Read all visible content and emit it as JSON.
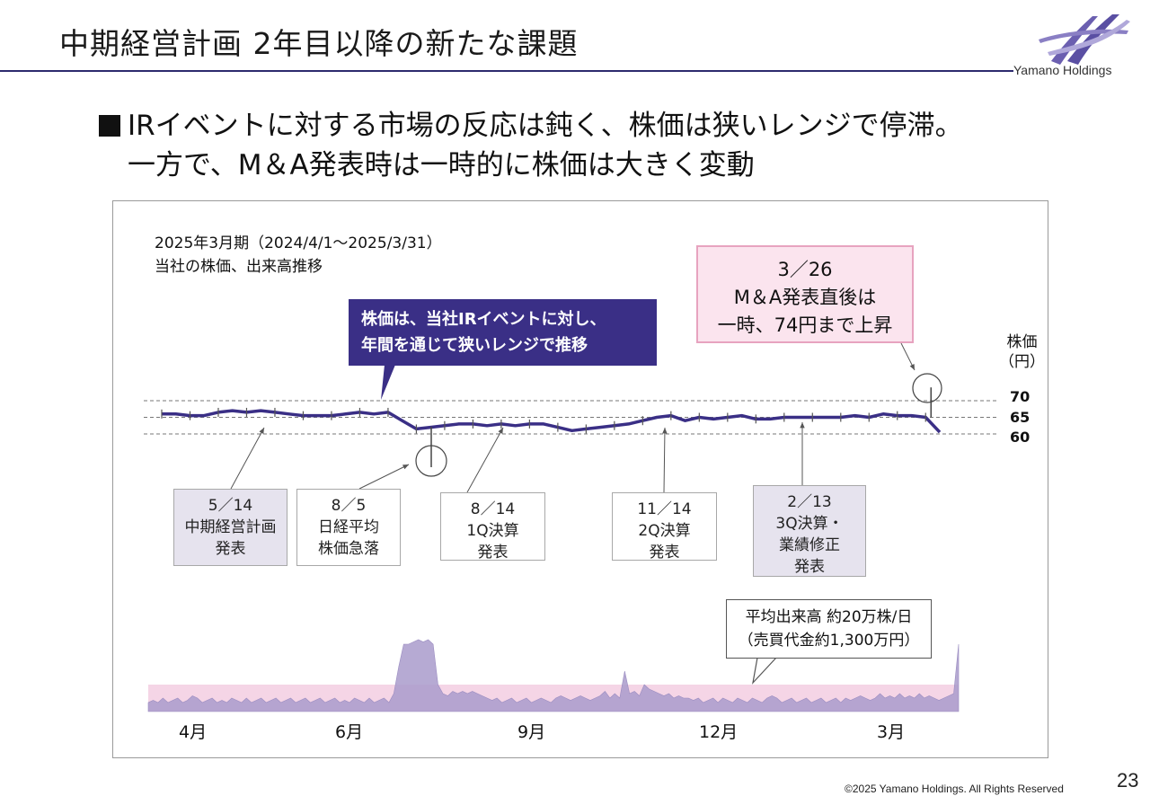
{
  "header": {
    "title": "中期経営計画 2年目以降の新たな課題",
    "logo_text": "Yamano Holdings"
  },
  "headline": {
    "line1": "IRイベントに対する市場の反応は鈍く、株価は狭いレンジで停滞。",
    "line2": "一方で、M＆A発表時は一時的に株価は大きく変動"
  },
  "chart_header": {
    "period": "2025年3月期（2024/4/1～2025/3/31）",
    "subtitle": "当社の株価、出来高推移"
  },
  "callouts": {
    "range_line1": "株価は、当社IRイベントに対し、",
    "range_line2": "年間を通じて狭いレンジで推移",
    "ma_line1": "3／26",
    "ma_line2": "M＆A発表直後は",
    "ma_line3": "一時、74円まで上昇",
    "volume_line1": "平均出来高 約20万株/日",
    "volume_line2": "（売買代金約1,300万円）"
  },
  "events": [
    {
      "date": "5／14",
      "lines": [
        "中期経営計画",
        "発表"
      ]
    },
    {
      "date": "8／5",
      "lines": [
        "日経平均",
        "株価急落"
      ]
    },
    {
      "date": "8／14",
      "lines": [
        "1Q決算",
        "発表"
      ]
    },
    {
      "date": "11／14",
      "lines": [
        "2Q決算",
        "発表"
      ]
    },
    {
      "date": "2／13",
      "lines": [
        "3Q決算・",
        "業績修正",
        "発表"
      ]
    }
  ],
  "y_axis": {
    "unit_line1": "株価",
    "unit_line2": "（円）",
    "ticks": [
      "70",
      "65",
      "60"
    ]
  },
  "months": [
    "4月",
    "6月",
    "9月",
    "12月",
    "3月"
  ],
  "footer": {
    "copyright": "©2025 Yamano Holdings. All Rights Reserved",
    "page": "23"
  },
  "colors": {
    "price_line": "#3a2f86",
    "volume_fill": "#a99bcb",
    "volume_band": "#f5d5e6",
    "callout_purple": "#3a2f86",
    "callout_pink": "#fbe4ee"
  },
  "chart_data": {
    "type": "line",
    "price": {
      "unit": "円",
      "ylim": [
        60,
        70
      ],
      "gridlines": [
        70,
        65,
        60
      ],
      "values": [
        66,
        66,
        65.5,
        65.5,
        66.5,
        67,
        66.5,
        67,
        66.5,
        66,
        65.5,
        65.5,
        65.5,
        66,
        66.5,
        66,
        66.5,
        64,
        61.5,
        62,
        62.5,
        63,
        63,
        62.5,
        63,
        62.5,
        63,
        63,
        62,
        61,
        61.5,
        62,
        62.5,
        63,
        64,
        65,
        65.5,
        64,
        65,
        64.5,
        65,
        65.5,
        64.5,
        64.5,
        65,
        65,
        65,
        65,
        65,
        65.5,
        65,
        66,
        65.5,
        65.5,
        65,
        60.5
      ],
      "ma_spike_high": 74
    },
    "volume": {
      "average_label": "平均出来高 約20万株/日",
      "values": [
        0.2,
        0.25,
        0.2,
        0.3,
        0.2,
        0.25,
        0.3,
        0.2,
        0.25,
        0.35,
        0.3,
        0.2,
        0.25,
        0.3,
        0.2,
        0.25,
        0.2,
        0.3,
        0.25,
        0.2,
        0.3,
        0.2,
        0.25,
        0.3,
        0.2,
        0.25,
        0.3,
        0.2,
        0.25,
        0.3,
        0.2,
        0.25,
        0.3,
        0.2,
        0.25,
        0.3,
        0.2,
        0.25,
        0.3,
        0.2,
        0.25,
        0.2,
        0.3,
        0.25,
        0.2,
        0.3,
        0.2,
        0.25,
        0.3,
        0.2,
        0.4,
        1.0,
        1.5,
        1.5,
        1.55,
        1.6,
        1.55,
        1.6,
        1.5,
        0.6,
        0.4,
        0.35,
        0.45,
        0.4,
        0.45,
        0.4,
        0.45,
        0.4,
        0.35,
        0.3,
        0.25,
        0.3,
        0.2,
        0.25,
        0.3,
        0.2,
        0.25,
        0.3,
        0.2,
        0.25,
        0.3,
        0.25,
        0.2,
        0.3,
        0.35,
        0.3,
        0.25,
        0.3,
        0.35,
        0.3,
        0.25,
        0.3,
        0.35,
        0.45,
        0.3,
        0.4,
        0.3,
        0.9,
        0.4,
        0.45,
        0.35,
        0.6,
        0.5,
        0.45,
        0.4,
        0.35,
        0.4,
        0.3,
        0.35,
        0.3,
        0.3,
        0.25,
        0.3,
        0.2,
        0.25,
        0.3,
        0.2,
        0.3,
        0.25,
        0.2,
        0.3,
        0.25,
        0.2,
        0.3,
        0.25,
        0.2,
        0.3,
        0.35,
        0.3,
        0.2,
        0.25,
        0.3,
        0.2,
        0.25,
        0.3,
        0.2,
        0.25,
        0.3,
        0.2,
        0.25,
        0.3,
        0.2,
        0.3,
        0.25,
        0.3,
        0.35,
        0.3,
        0.25,
        0.3,
        0.4,
        0.3,
        0.35,
        0.3,
        0.4,
        0.3,
        0.35,
        0.3,
        0.4,
        0.3,
        0.35,
        0.3,
        0.25,
        0.3,
        0.35,
        0.4,
        1.5
      ]
    }
  }
}
